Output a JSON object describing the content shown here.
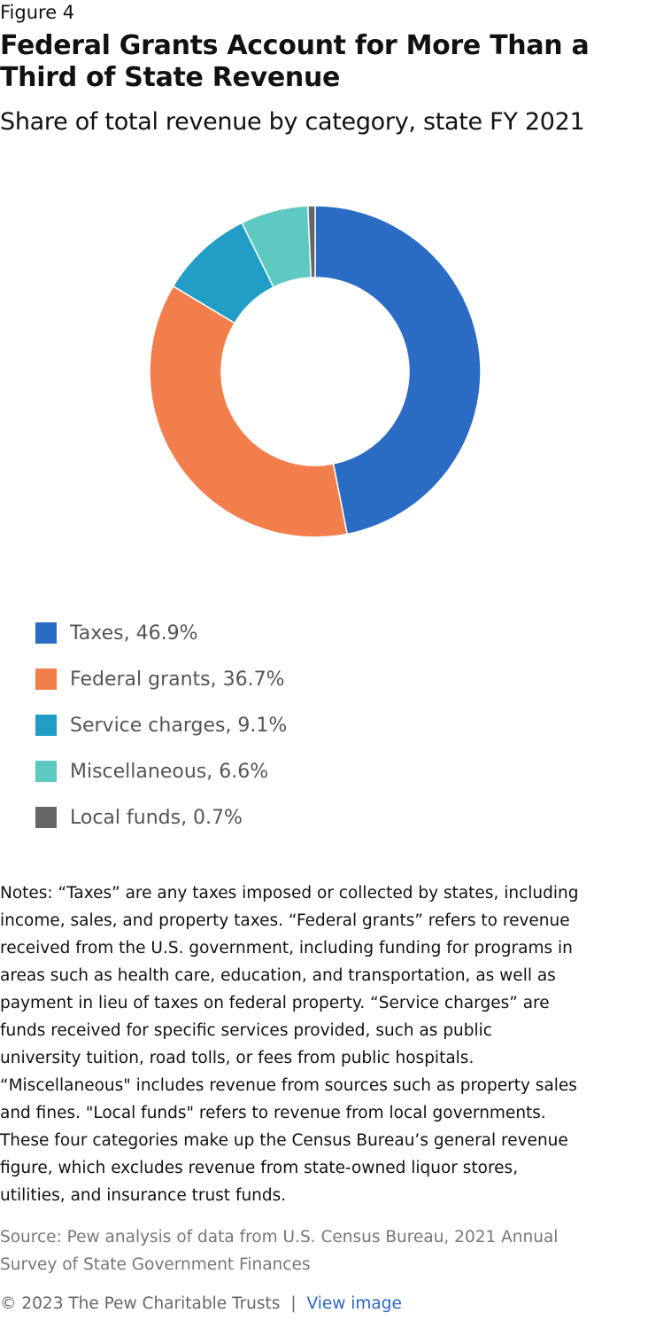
{
  "figure_label": "Figure 4",
  "chart_data": {
    "type": "pie",
    "title": "Federal Grants Account for More Than a Third of State Revenue",
    "subtitle": "Share of total revenue by category, state FY 2021",
    "categories": [
      "Taxes",
      "Federal grants",
      "Service charges",
      "Miscellaneous",
      "Local funds"
    ],
    "values": [
      46.9,
      36.7,
      9.1,
      6.6,
      0.7
    ],
    "colors": [
      "#2a6bc4",
      "#f27f4b",
      "#229ec6",
      "#5ec9c0",
      "#666666"
    ],
    "donut": true,
    "legend_position": "bottom-left",
    "legend": [
      "Taxes, 46.9%",
      "Federal grants, 36.7%",
      "Service charges, 9.1%",
      "Miscellaneous, 6.6%",
      "Local funds, 0.7%"
    ]
  },
  "notes": "Notes: “Taxes” are any taxes imposed or collected by states, including\nincome, sales, and property taxes. “Federal grants” refers to revenue\nreceived from the U.S. government, including funding for programs in\nareas such as health care, education, and transportation, as well as\npayment in lieu of taxes on federal property. “Service charges” are\nfunds received for specific services provided, such as public\nuniversity tuition, road tolls, or fees from public hospitals.\n“Miscellaneous\" includes revenue from sources such as property sales\nand fines. \"Local funds\" refers to revenue from local governments.\nThese four categories make up the Census Bureau’s general revenue\nfigure, which excludes revenue from state-owned liquor stores,\nutilities, and insurance trust funds.",
  "source": "Source: Pew analysis of data from U.S. Census Bureau, 2021 Annual\nSurvey of State Government Finances",
  "footer": {
    "copyright": "© 2023 The Pew Charitable Trusts",
    "separator": "|",
    "link_label": "View image"
  }
}
